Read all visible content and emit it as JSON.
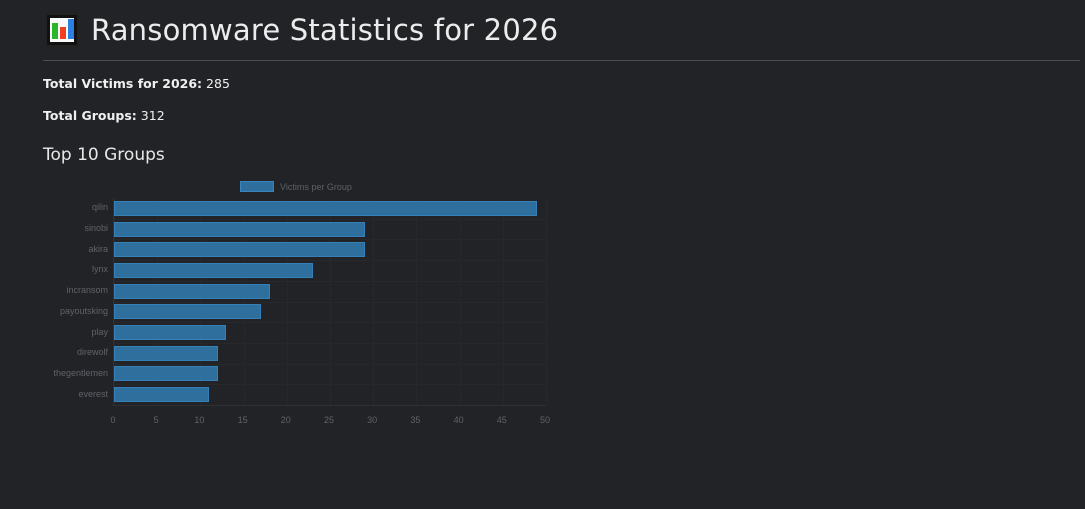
{
  "header": {
    "icon": "bar-chart-emoji-icon",
    "title": "Ransomware Statistics for 2026"
  },
  "stats": {
    "victims_label": "Total Victims for 2026:",
    "victims_value": "285",
    "groups_label": "Total Groups:",
    "groups_value": "312"
  },
  "section_title": "Top 10 Groups",
  "colors": {
    "background": "#212327",
    "bar_fill": "#2e6f9e",
    "bar_border": "#3580b6"
  },
  "chart_data": {
    "type": "bar",
    "orientation": "horizontal",
    "title": "",
    "legend": [
      "Victims per Group"
    ],
    "legend_position": "top",
    "categories": [
      "qilin",
      "sinobi",
      "akira",
      "lynx",
      "incransom",
      "payoutsking",
      "play",
      "direwolf",
      "thegentlemen",
      "everest"
    ],
    "series": [
      {
        "name": "Victims per Group",
        "values": [
          49,
          29,
          29,
          23,
          18,
          17,
          13,
          12,
          12,
          11
        ]
      }
    ],
    "xlabel": "",
    "ylabel": "",
    "xlim": [
      0,
      50
    ],
    "xticks": [
      "0",
      "5",
      "10",
      "15",
      "20",
      "25",
      "30",
      "35",
      "40",
      "45",
      "50"
    ],
    "grid": true
  }
}
